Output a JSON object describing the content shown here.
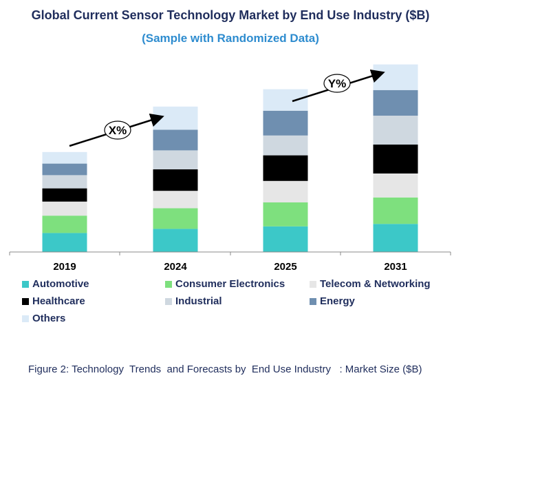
{
  "title": "Global Current Sensor Technology Market by End Use Industry ($B)",
  "subtitle": "(Sample with Randomized Data)",
  "caption": "Figure 2: Technology  Trends  and Forecasts by  End Use Industry   : Market Size ($B)",
  "annotations": [
    "X%",
    "Y%"
  ],
  "chart_data": {
    "type": "bar",
    "stacked": true,
    "title": "Global Current Sensor Technology Market by End Use Industry ($B)",
    "subtitle": "(Sample with Randomized Data)",
    "categories": [
      "2019",
      "2024",
      "2025",
      "2031"
    ],
    "series": [
      {
        "name": "Automotive",
        "color": "#3cc8c8",
        "values": [
          23,
          28,
          31,
          34
        ]
      },
      {
        "name": "Consumer Electronics",
        "color": "#7ee07e",
        "values": [
          21,
          25,
          29,
          32
        ]
      },
      {
        "name": "Telecom & Networking",
        "color": "#e6e6e6",
        "values": [
          17,
          21,
          26,
          29
        ]
      },
      {
        "name": "Healthcare",
        "color": "#000000",
        "values": [
          16,
          26,
          31,
          35
        ]
      },
      {
        "name": "Industrial",
        "color": "#cfd8e0",
        "values": [
          16,
          23,
          24,
          35
        ]
      },
      {
        "name": "Energy",
        "color": "#6f8fb0",
        "values": [
          14,
          25,
          30,
          31
        ]
      },
      {
        "name": "Others",
        "color": "#dbeaf7",
        "values": [
          14,
          28,
          26,
          31
        ]
      }
    ],
    "ylim": [
      0,
      230
    ],
    "grid": false,
    "legend_position": "bottom",
    "annotations": [
      {
        "text": "X%",
        "from": "2019",
        "to": "2024"
      },
      {
        "text": "Y%",
        "from": "2025",
        "to": "2031"
      }
    ]
  }
}
